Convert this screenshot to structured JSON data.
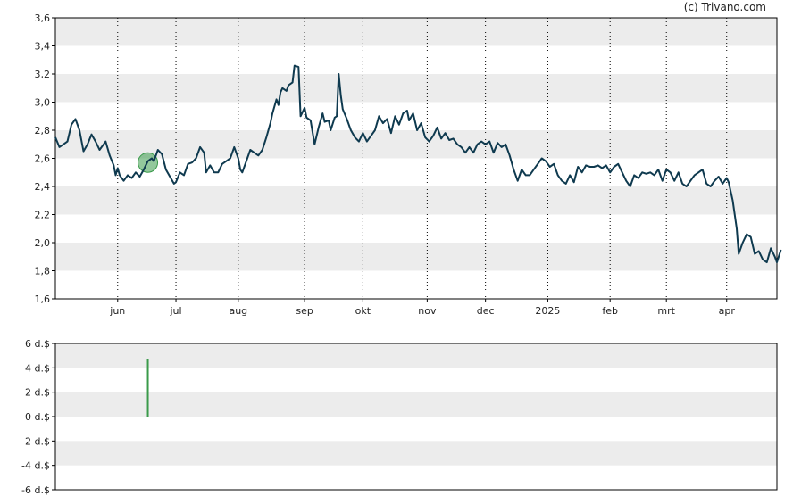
{
  "credit": "(c) Trivano.com",
  "chart_data": [
    {
      "type": "line",
      "title": "",
      "xlabel": "",
      "ylabel": "",
      "ylim": [
        1.6,
        3.6
      ],
      "yticks": [
        "1,6",
        "1,8",
        "2,0",
        "2,2",
        "2,4",
        "2,6",
        "2,8",
        "3,0",
        "3,2",
        "3,4",
        "3,6"
      ],
      "xlim": [
        0,
        359
      ],
      "xticks": [
        {
          "label": "jun",
          "x": 31
        },
        {
          "label": "jul",
          "x": 60
        },
        {
          "label": "aug",
          "x": 91
        },
        {
          "label": "sep",
          "x": 124
        },
        {
          "label": "okt",
          "x": 153
        },
        {
          "label": "nov",
          "x": 185
        },
        {
          "label": "dec",
          "x": 214
        },
        {
          "label": "2025",
          "x": 245
        },
        {
          "label": "feb",
          "x": 276
        },
        {
          "label": "mrt",
          "x": 304
        },
        {
          "label": "apr",
          "x": 334
        }
      ],
      "grid": "alternating horizontal bands with dotted vertical month lines",
      "line_color": "#0f3a4f",
      "marker": {
        "x": 46,
        "y": 2.57,
        "color": "#3a9a4a"
      },
      "series": [
        {
          "points": [
            [
              0,
              2.75
            ],
            [
              2,
              2.68
            ],
            [
              4,
              2.7
            ],
            [
              6,
              2.72
            ],
            [
              8,
              2.84
            ],
            [
              10,
              2.88
            ],
            [
              12,
              2.8
            ],
            [
              14,
              2.65
            ],
            [
              16,
              2.7
            ],
            [
              18,
              2.77
            ],
            [
              20,
              2.72
            ],
            [
              22,
              2.66
            ],
            [
              24,
              2.7
            ],
            [
              25,
              2.72
            ],
            [
              27,
              2.62
            ],
            [
              29,
              2.55
            ],
            [
              30,
              2.48
            ],
            [
              31,
              2.53
            ],
            [
              32,
              2.48
            ],
            [
              34,
              2.44
            ],
            [
              36,
              2.48
            ],
            [
              38,
              2.46
            ],
            [
              40,
              2.5
            ],
            [
              42,
              2.47
            ],
            [
              44,
              2.52
            ],
            [
              46,
              2.58
            ],
            [
              48,
              2.6
            ],
            [
              49,
              2.58
            ],
            [
              51,
              2.66
            ],
            [
              53,
              2.63
            ],
            [
              55,
              2.52
            ],
            [
              57,
              2.47
            ],
            [
              59,
              2.42
            ],
            [
              60,
              2.43
            ],
            [
              62,
              2.5
            ],
            [
              64,
              2.48
            ],
            [
              66,
              2.56
            ],
            [
              68,
              2.57
            ],
            [
              70,
              2.6
            ],
            [
              72,
              2.68
            ],
            [
              74,
              2.64
            ],
            [
              75,
              2.5
            ],
            [
              77,
              2.55
            ],
            [
              79,
              2.5
            ],
            [
              81,
              2.5
            ],
            [
              83,
              2.56
            ],
            [
              85,
              2.58
            ],
            [
              87,
              2.6
            ],
            [
              89,
              2.68
            ],
            [
              91,
              2.6
            ],
            [
              92,
              2.52
            ],
            [
              93,
              2.5
            ],
            [
              95,
              2.58
            ],
            [
              97,
              2.66
            ],
            [
              99,
              2.64
            ],
            [
              101,
              2.62
            ],
            [
              103,
              2.66
            ],
            [
              105,
              2.75
            ],
            [
              107,
              2.85
            ],
            [
              108,
              2.92
            ],
            [
              110,
              3.02
            ],
            [
              111,
              2.98
            ],
            [
              112,
              3.07
            ],
            [
              113,
              3.1
            ],
            [
              115,
              3.08
            ],
            [
              116,
              3.12
            ],
            [
              118,
              3.14
            ],
            [
              119,
              3.26
            ],
            [
              121,
              3.25
            ],
            [
              122,
              2.9
            ],
            [
              124,
              2.96
            ],
            [
              125,
              2.89
            ],
            [
              127,
              2.87
            ],
            [
              129,
              2.7
            ],
            [
              131,
              2.82
            ],
            [
              133,
              2.92
            ],
            [
              134,
              2.86
            ],
            [
              136,
              2.87
            ],
            [
              137,
              2.8
            ],
            [
              139,
              2.89
            ],
            [
              140,
              2.9
            ],
            [
              141,
              3.2
            ],
            [
              142,
              3.05
            ],
            [
              143,
              2.95
            ],
            [
              145,
              2.88
            ],
            [
              147,
              2.8
            ],
            [
              149,
              2.75
            ],
            [
              151,
              2.72
            ],
            [
              153,
              2.78
            ],
            [
              155,
              2.72
            ],
            [
              157,
              2.76
            ],
            [
              159,
              2.8
            ],
            [
              161,
              2.9
            ],
            [
              163,
              2.85
            ],
            [
              165,
              2.88
            ],
            [
              167,
              2.78
            ],
            [
              169,
              2.9
            ],
            [
              171,
              2.84
            ],
            [
              173,
              2.92
            ],
            [
              175,
              2.94
            ],
            [
              176,
              2.87
            ],
            [
              178,
              2.92
            ],
            [
              180,
              2.8
            ],
            [
              182,
              2.85
            ],
            [
              184,
              2.75
            ],
            [
              186,
              2.72
            ],
            [
              188,
              2.76
            ],
            [
              190,
              2.82
            ],
            [
              192,
              2.74
            ],
            [
              194,
              2.78
            ],
            [
              196,
              2.73
            ],
            [
              198,
              2.74
            ],
            [
              200,
              2.7
            ],
            [
              202,
              2.68
            ],
            [
              204,
              2.64
            ],
            [
              206,
              2.68
            ],
            [
              208,
              2.64
            ],
            [
              210,
              2.7
            ],
            [
              212,
              2.72
            ],
            [
              214,
              2.7
            ],
            [
              216,
              2.72
            ],
            [
              218,
              2.64
            ],
            [
              220,
              2.71
            ],
            [
              222,
              2.68
            ],
            [
              224,
              2.7
            ],
            [
              226,
              2.62
            ],
            [
              228,
              2.52
            ],
            [
              230,
              2.44
            ],
            [
              232,
              2.52
            ],
            [
              234,
              2.48
            ],
            [
              236,
              2.48
            ],
            [
              238,
              2.52
            ],
            [
              240,
              2.56
            ],
            [
              242,
              2.6
            ],
            [
              244,
              2.58
            ],
            [
              246,
              2.54
            ],
            [
              248,
              2.56
            ],
            [
              250,
              2.48
            ],
            [
              252,
              2.44
            ],
            [
              254,
              2.42
            ],
            [
              256,
              2.48
            ],
            [
              258,
              2.43
            ],
            [
              260,
              2.54
            ],
            [
              262,
              2.5
            ],
            [
              264,
              2.55
            ],
            [
              266,
              2.54
            ],
            [
              268,
              2.54
            ],
            [
              270,
              2.55
            ],
            [
              272,
              2.53
            ],
            [
              274,
              2.55
            ],
            [
              276,
              2.5
            ],
            [
              278,
              2.54
            ],
            [
              280,
              2.56
            ],
            [
              282,
              2.5
            ],
            [
              284,
              2.44
            ],
            [
              286,
              2.4
            ],
            [
              288,
              2.48
            ],
            [
              290,
              2.46
            ],
            [
              292,
              2.5
            ],
            [
              294,
              2.49
            ],
            [
              296,
              2.5
            ],
            [
              298,
              2.48
            ],
            [
              300,
              2.52
            ],
            [
              302,
              2.44
            ],
            [
              304,
              2.52
            ],
            [
              306,
              2.5
            ],
            [
              308,
              2.44
            ],
            [
              310,
              2.5
            ],
            [
              312,
              2.42
            ],
            [
              314,
              2.4
            ],
            [
              316,
              2.44
            ],
            [
              318,
              2.48
            ],
            [
              320,
              2.5
            ],
            [
              322,
              2.52
            ],
            [
              324,
              2.42
            ],
            [
              326,
              2.4
            ],
            [
              328,
              2.44
            ],
            [
              330,
              2.47
            ],
            [
              332,
              2.42
            ],
            [
              334,
              2.46
            ],
            [
              335,
              2.43
            ],
            [
              337,
              2.3
            ],
            [
              339,
              2.1
            ],
            [
              340,
              1.92
            ],
            [
              342,
              2.0
            ],
            [
              344,
              2.06
            ],
            [
              346,
              2.04
            ],
            [
              348,
              1.92
            ],
            [
              350,
              1.94
            ],
            [
              352,
              1.88
            ],
            [
              354,
              1.86
            ],
            [
              356,
              1.96
            ],
            [
              358,
              1.9
            ],
            [
              359,
              1.86
            ],
            [
              361,
              1.95
            ]
          ]
        }
      ]
    },
    {
      "type": "bar",
      "title": "",
      "xlabel": "",
      "ylabel": "",
      "ylim": [
        -6,
        6
      ],
      "yticks": [
        "6 d.$",
        "4 d.$",
        "2 d.$",
        "0 d.$",
        "-2 d.$",
        "-4 d.$",
        "-6 d.$"
      ],
      "bars": [
        {
          "x": 46,
          "value": 4.7,
          "color": "#3a9a4a"
        }
      ]
    }
  ]
}
